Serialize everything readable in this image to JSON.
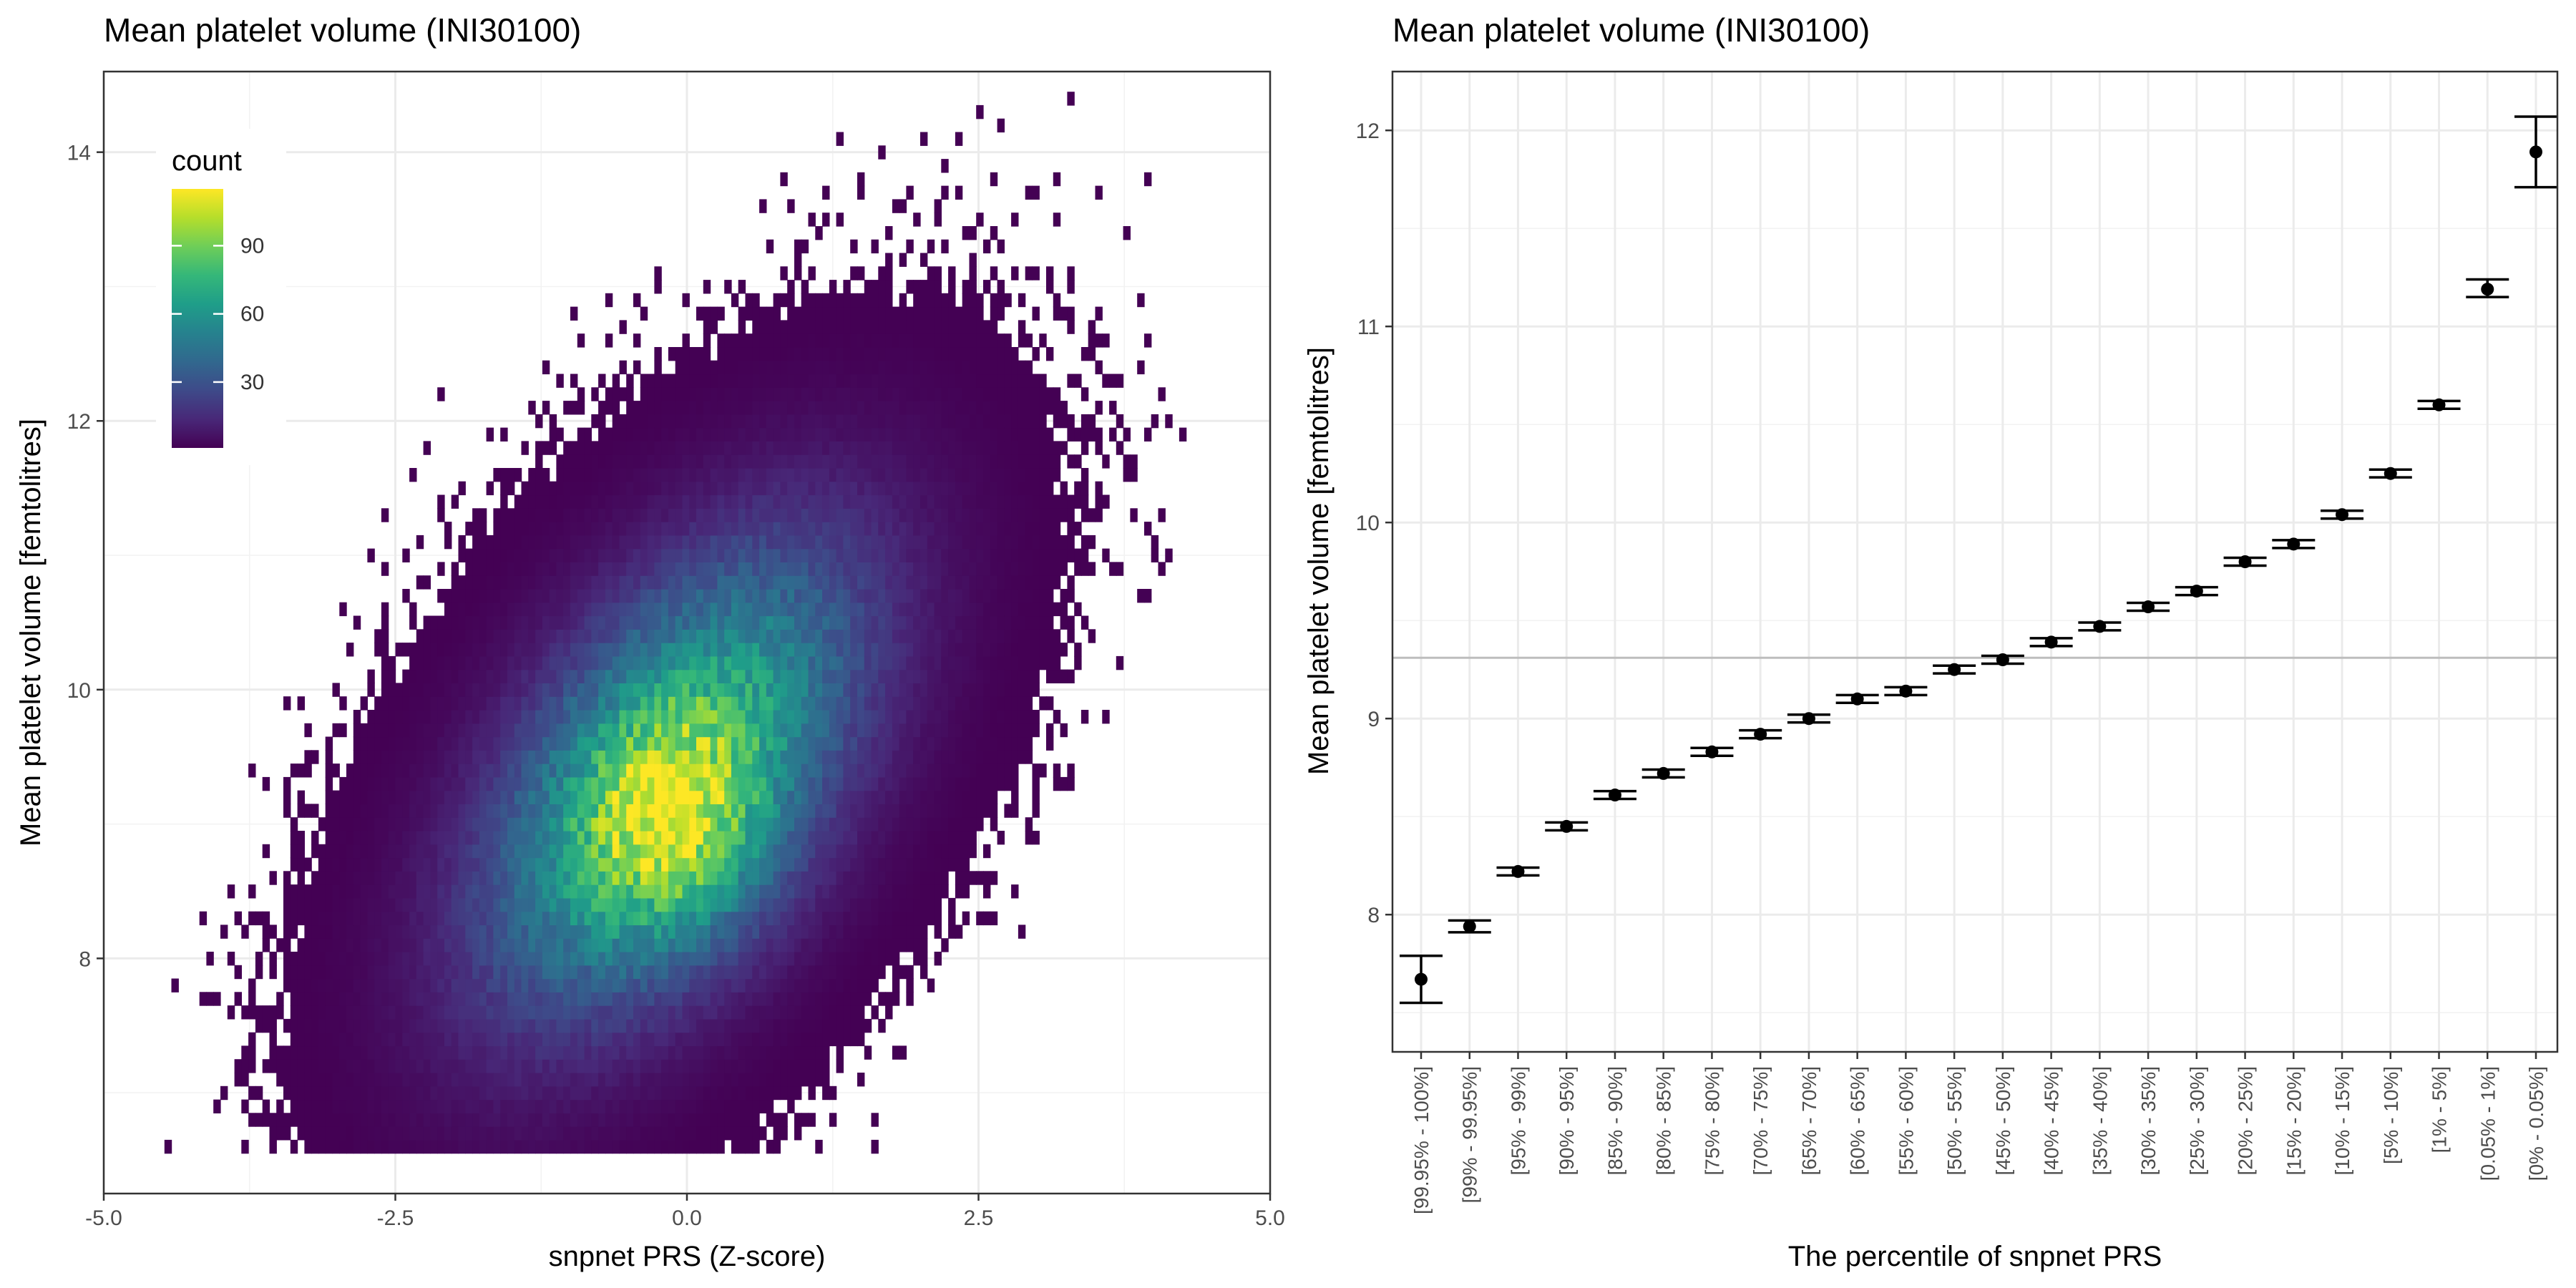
{
  "chart_data": [
    {
      "type": "heatmap",
      "title": "Mean platelet volume (INI30100)",
      "xlabel": "snpnet PRS (Z-score)",
      "ylabel": "Mean platelet volume [femtolitres]",
      "xlim": [
        -5.0,
        5.0
      ],
      "ylim": [
        6.25,
        14.6
      ],
      "xticks": [
        -5.0,
        -2.5,
        0.0,
        2.5,
        5.0
      ],
      "xtick_labels": [
        "-5.0",
        "-2.5",
        "0.0",
        "2.5",
        "5.0"
      ],
      "yticks": [
        8,
        10,
        12,
        14
      ],
      "ytick_labels": [
        "8",
        "10",
        "12",
        "14"
      ],
      "grid": true,
      "legend": {
        "title": "count",
        "placement": "top-left",
        "ticks": [
          30,
          60,
          90
        ],
        "tick_labels": [
          "30",
          "60",
          "90"
        ],
        "range": [
          1,
          115
        ],
        "colors": [
          "#440154",
          "#482878",
          "#3e4a89",
          "#31688e",
          "#26828e",
          "#1f9e89",
          "#35b779",
          "#6ece58",
          "#b5de2b",
          "#fde725"
        ]
      },
      "density_model": {
        "x_center": -0.15,
        "y_intercept": 9.3,
        "y_slope": 0.57,
        "x_sd": 1.05,
        "y_sd": 0.95,
        "peak_count": 115,
        "peak_location": [
          -0.15,
          8.9
        ]
      }
    },
    {
      "type": "scatter",
      "subtype": "errorbar",
      "title": "Mean platelet volume (INI30100)",
      "xlabel": "The percentile of snpnet PRS",
      "ylabel": "Mean platelet volume [femtolitres]",
      "ylim": [
        7.3,
        12.3
      ],
      "yticks": [
        8,
        9,
        10,
        11,
        12
      ],
      "ytick_labels": [
        "8",
        "9",
        "10",
        "11",
        "12"
      ],
      "grid": true,
      "reference_line": 9.31,
      "categories": [
        "[99.95% - 100%]",
        "[99% - 99.95%]",
        "[95% - 99%]",
        "[90% - 95%]",
        "[85% - 90%]",
        "[80% - 85%]",
        "[75% - 80%]",
        "[70% - 75%]",
        "[65% - 70%]",
        "[60% - 65%]",
        "[55% - 60%]",
        "[50% - 55%]",
        "[45% - 50%]",
        "[40% - 45%]",
        "[35% - 40%]",
        "[30% - 35%]",
        "[25% - 30%]",
        "[20% - 25%]",
        "[15% - 20%]",
        "[10% - 15%]",
        "[5% - 10%]",
        "[1% - 5%]",
        "[0.05% - 1%]",
        "[0% - 0.05%]"
      ],
      "values": [
        7.67,
        7.94,
        8.22,
        8.45,
        8.61,
        8.72,
        8.83,
        8.92,
        9.0,
        9.1,
        9.14,
        9.25,
        9.3,
        9.39,
        9.47,
        9.57,
        9.65,
        9.8,
        9.89,
        10.04,
        10.25,
        10.6,
        11.19,
        11.89
      ],
      "lower": [
        7.55,
        7.91,
        8.2,
        8.43,
        8.59,
        8.7,
        8.81,
        8.9,
        8.98,
        9.08,
        9.12,
        9.23,
        9.28,
        9.37,
        9.45,
        9.55,
        9.63,
        9.78,
        9.87,
        10.02,
        10.23,
        10.58,
        11.15,
        11.71
      ],
      "upper": [
        7.79,
        7.97,
        8.24,
        8.47,
        8.63,
        8.74,
        8.85,
        8.94,
        9.02,
        9.12,
        9.16,
        9.27,
        9.32,
        9.41,
        9.49,
        9.59,
        9.67,
        9.82,
        9.91,
        10.06,
        10.27,
        10.62,
        11.24,
        12.07
      ]
    }
  ]
}
